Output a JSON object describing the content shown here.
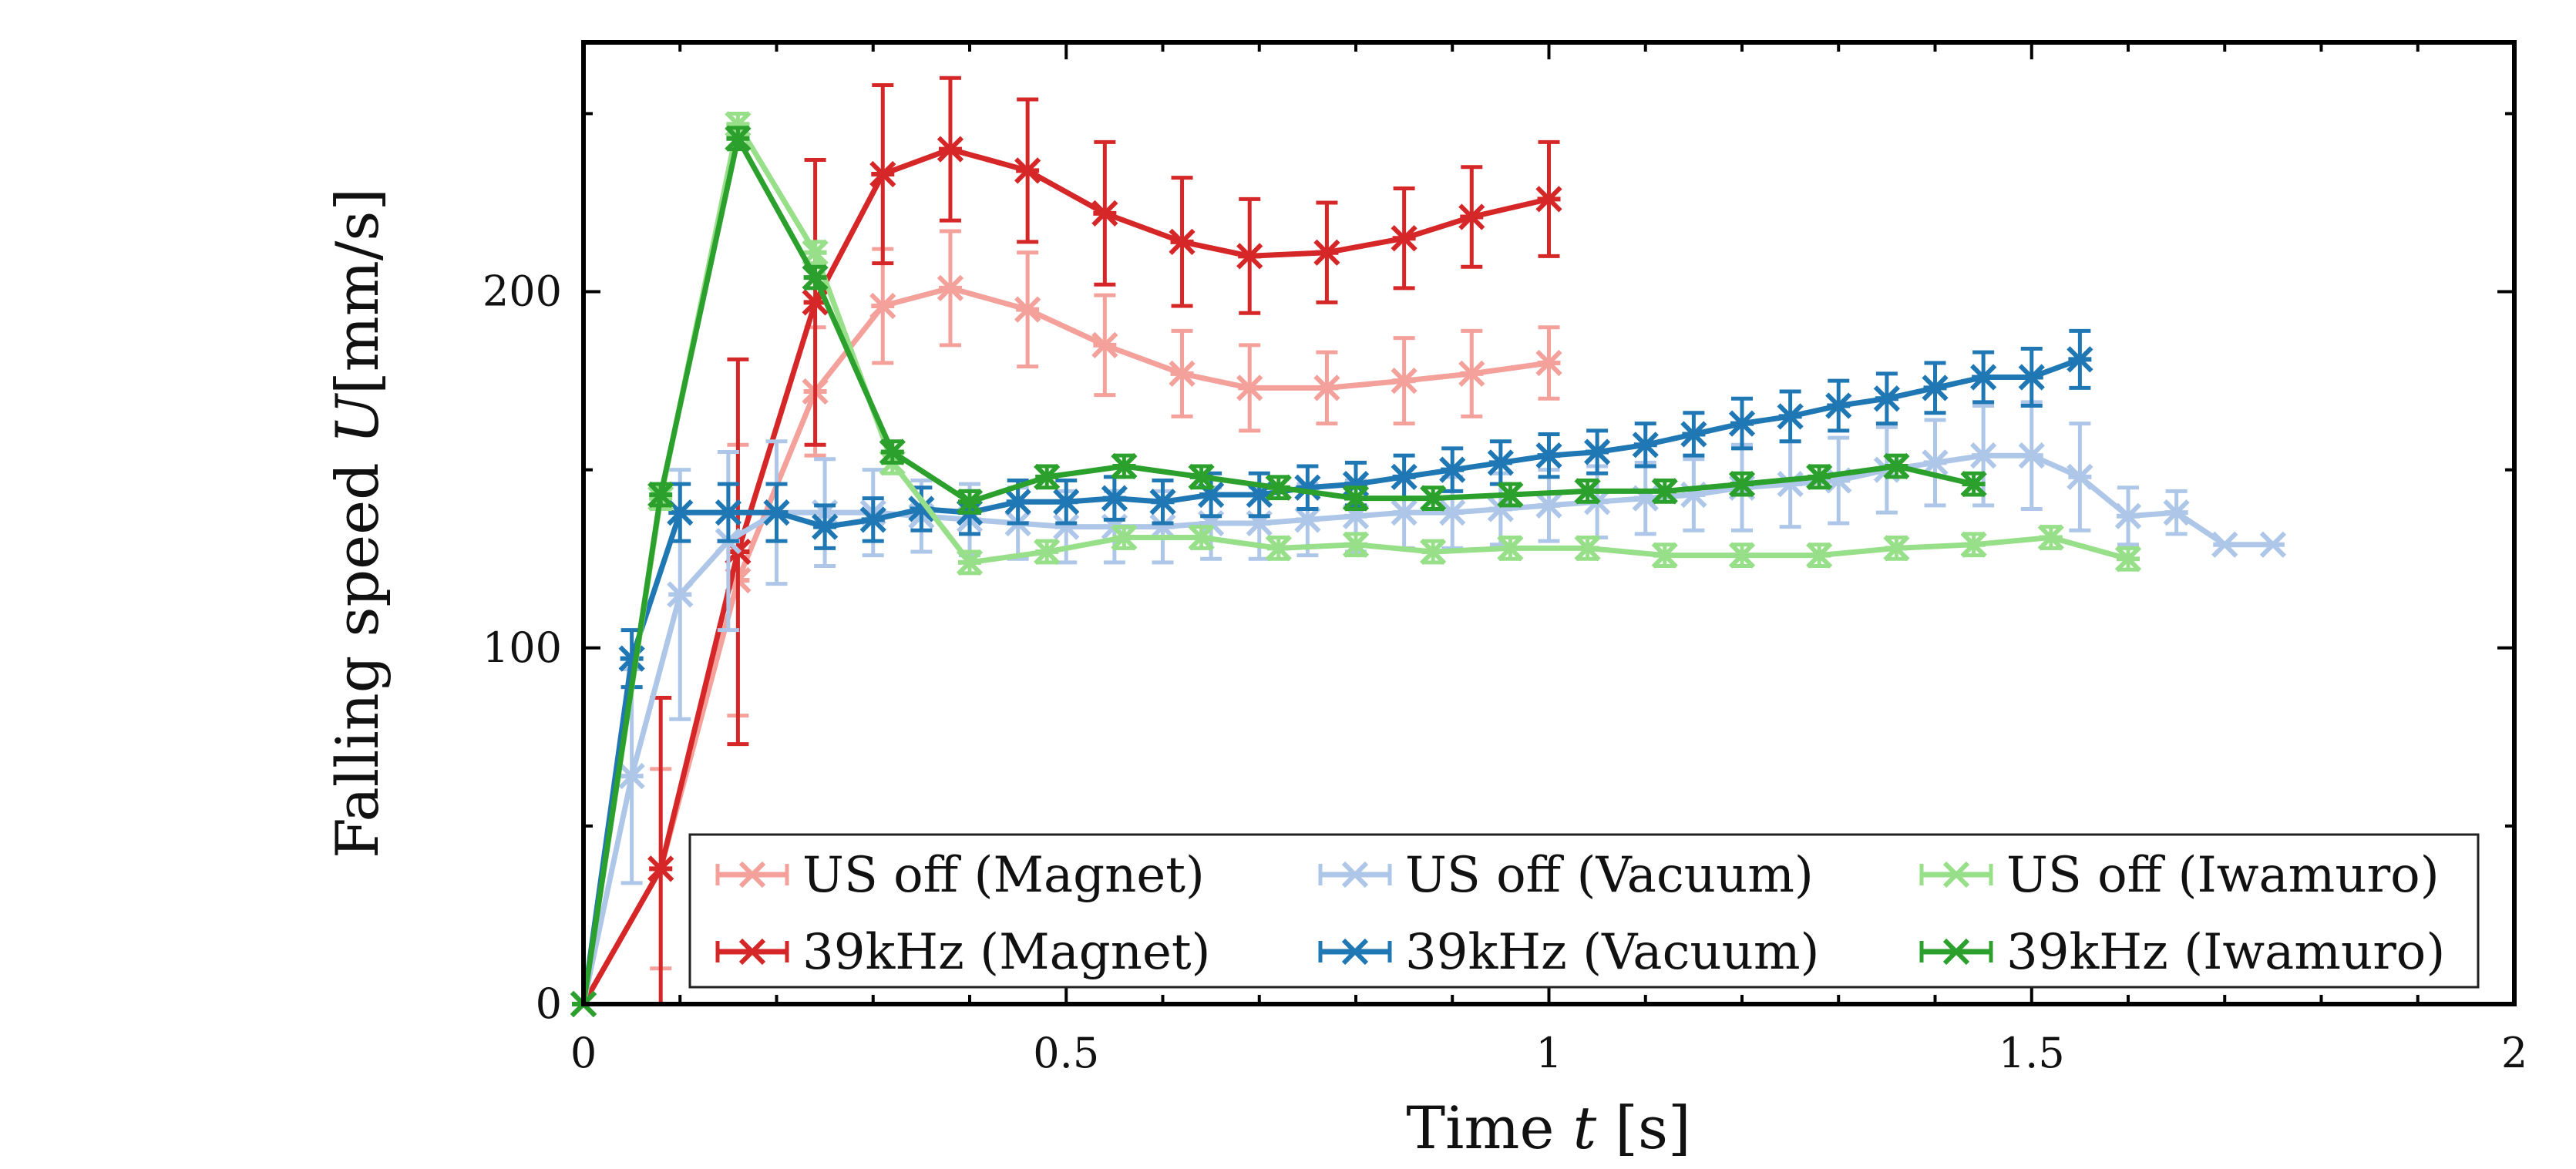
{
  "chart_data": {
    "type": "line",
    "title": "",
    "xlabel": {
      "main": "Time ",
      "var": "t",
      "unit": " [s]"
    },
    "ylabel": {
      "main": "Falling speed ",
      "var": "U",
      "unit": "[mm/s]"
    },
    "xlim": [
      0,
      2
    ],
    "ylim": [
      0,
      270
    ],
    "xticks": [
      0,
      0.5,
      1,
      1.5,
      2
    ],
    "xtick_labels": [
      "0",
      "0.5",
      "1",
      "1.5",
      "2"
    ],
    "yticks": [
      0,
      100,
      200
    ],
    "ytick_labels": [
      "0",
      "100",
      "200"
    ],
    "grid": false,
    "legend_position": "bottom-right",
    "series": [
      {
        "name": "US off (Magnet)",
        "color": "#f4a09b",
        "x": [
          0,
          0.08,
          0.16,
          0.24,
          0.31,
          0.38,
          0.46,
          0.54,
          0.62,
          0.69,
          0.77,
          0.85,
          0.92,
          1.0
        ],
        "y": [
          0,
          38,
          119,
          172,
          196,
          201,
          195,
          185,
          177,
          173,
          173,
          175,
          177,
          180
        ],
        "err": [
          0,
          28,
          38,
          18,
          16,
          16,
          16,
          14,
          12,
          12,
          10,
          12,
          12,
          10
        ]
      },
      {
        "name": "39kHz (Magnet)",
        "color": "#d62728",
        "x": [
          0,
          0.08,
          0.16,
          0.24,
          0.31,
          0.38,
          0.46,
          0.54,
          0.62,
          0.69,
          0.77,
          0.85,
          0.92,
          1.0
        ],
        "y": [
          0,
          38,
          127,
          197,
          233,
          240,
          234,
          222,
          214,
          210,
          211,
          215,
          221,
          226
        ],
        "err": [
          0,
          48,
          54,
          40,
          25,
          20,
          20,
          20,
          18,
          16,
          14,
          14,
          14,
          16
        ]
      },
      {
        "name": "US off (Vacuum)",
        "color": "#aec7e8",
        "x": [
          0,
          0.05,
          0.1,
          0.15,
          0.2,
          0.25,
          0.3,
          0.35,
          0.4,
          0.45,
          0.5,
          0.55,
          0.6,
          0.65,
          0.7,
          0.75,
          0.8,
          0.85,
          0.9,
          0.95,
          1.0,
          1.05,
          1.1,
          1.15,
          1.2,
          1.25,
          1.3,
          1.35,
          1.4,
          1.45,
          1.5,
          1.55,
          1.6,
          1.65,
          1.7,
          1.75
        ],
        "y": [
          0,
          64,
          115,
          130,
          138,
          138,
          138,
          137,
          136,
          135,
          134,
          134,
          134,
          135,
          135,
          136,
          137,
          138,
          138,
          139,
          140,
          141,
          142,
          143,
          145,
          146,
          147,
          150,
          152,
          154,
          154,
          148,
          137,
          138,
          129,
          129
        ],
        "err": [
          0,
          30,
          35,
          25,
          20,
          15,
          12,
          10,
          10,
          10,
          10,
          10,
          10,
          10,
          10,
          10,
          10,
          10,
          10,
          10,
          10,
          10,
          10,
          10,
          12,
          12,
          12,
          12,
          12,
          14,
          15,
          15,
          8,
          6,
          0,
          0
        ]
      },
      {
        "name": "39kHz (Vacuum)",
        "color": "#1f77b4",
        "x": [
          0,
          0.05,
          0.1,
          0.15,
          0.2,
          0.25,
          0.3,
          0.35,
          0.4,
          0.45,
          0.5,
          0.55,
          0.6,
          0.65,
          0.7,
          0.75,
          0.8,
          0.85,
          0.9,
          0.95,
          1.0,
          1.05,
          1.1,
          1.15,
          1.2,
          1.25,
          1.3,
          1.35,
          1.4,
          1.45,
          1.5,
          1.55
        ],
        "y": [
          0,
          97,
          138,
          138,
          138,
          134,
          136,
          139,
          138,
          141,
          141,
          142,
          141,
          143,
          143,
          145,
          146,
          148,
          150,
          152,
          154,
          155,
          157,
          160,
          163,
          165,
          168,
          170,
          173,
          176,
          176,
          181
        ],
        "err": [
          0,
          8,
          8,
          8,
          8,
          6,
          6,
          6,
          6,
          6,
          6,
          6,
          6,
          6,
          6,
          6,
          6,
          6,
          6,
          6,
          6,
          6,
          6,
          6,
          7,
          7,
          7,
          7,
          7,
          7,
          8,
          8
        ]
      },
      {
        "name": "US off (Iwamuro)",
        "color": "#98df8a",
        "x": [
          0,
          0.08,
          0.16,
          0.24,
          0.32,
          0.4,
          0.48,
          0.56,
          0.64,
          0.72,
          0.8,
          0.88,
          0.96,
          1.04,
          1.12,
          1.2,
          1.28,
          1.36,
          1.44,
          1.52,
          1.6
        ],
        "y": [
          0,
          142,
          247,
          211,
          152,
          124,
          127,
          131,
          131,
          128,
          129,
          127,
          128,
          128,
          126,
          126,
          126,
          128,
          129,
          131,
          125
        ],
        "err": [
          0,
          3,
          3,
          3,
          3,
          3,
          3,
          3,
          3,
          3,
          3,
          3,
          3,
          3,
          3,
          3,
          3,
          3,
          3,
          3,
          3
        ]
      },
      {
        "name": "39kHz (Iwamuro)",
        "color": "#2ca02c",
        "x": [
          0,
          0.08,
          0.16,
          0.24,
          0.32,
          0.4,
          0.48,
          0.56,
          0.64,
          0.72,
          0.8,
          0.88,
          0.96,
          1.04,
          1.12,
          1.2,
          1.28,
          1.36,
          1.44
        ],
        "y": [
          0,
          143,
          243,
          204,
          155,
          141,
          148,
          151,
          148,
          145,
          142,
          142,
          143,
          144,
          144,
          146,
          148,
          151,
          146
        ],
        "err": [
          0,
          3,
          3,
          3,
          3,
          3,
          3,
          3,
          3,
          3,
          3,
          3,
          3,
          3,
          3,
          3,
          3,
          3,
          3
        ]
      }
    ],
    "legend_order": [
      0,
      2,
      4,
      1,
      3,
      5
    ]
  }
}
